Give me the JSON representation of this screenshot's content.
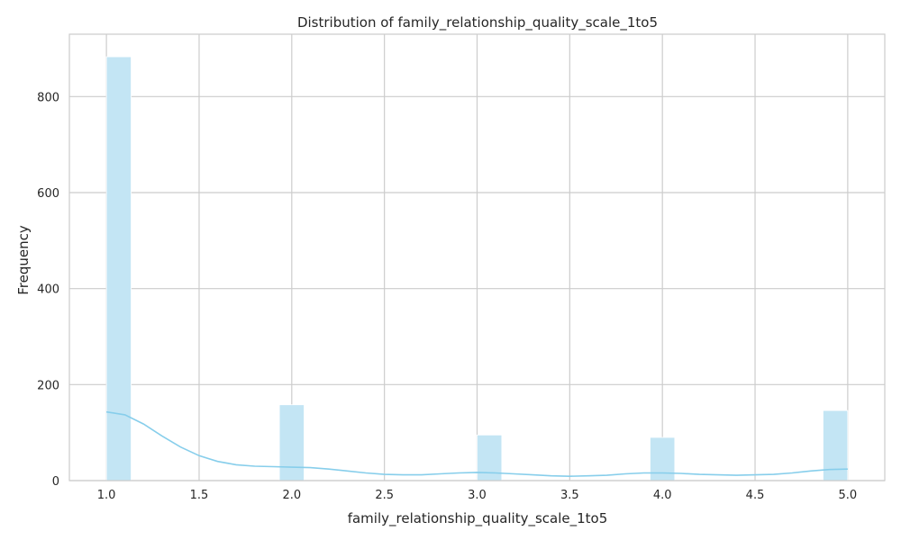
{
  "chart_data": {
    "type": "bar",
    "subtype": "histogram-with-kde",
    "title": "Distribution of family_relationship_quality_scale_1to5",
    "xlabel": "family_relationship_quality_scale_1to5",
    "ylabel": "Frequency",
    "xlim": [
      0.8,
      5.2
    ],
    "ylim": [
      0,
      930
    ],
    "x_ticks": [
      1.0,
      1.5,
      2.0,
      2.5,
      3.0,
      3.5,
      4.0,
      4.5,
      5.0
    ],
    "y_ticks": [
      0,
      200,
      400,
      600,
      800
    ],
    "x_tick_labels": [
      "1.0",
      "1.5",
      "2.0",
      "2.5",
      "3.0",
      "3.5",
      "4.0",
      "4.5",
      "5.0"
    ],
    "y_tick_labels": [
      "0",
      "200",
      "400",
      "600",
      "800"
    ],
    "grid": true,
    "bar_color": "#c3e5f4",
    "kde_color": "#87ceeb",
    "bins": [
      {
        "x0": 1.0,
        "x1": 1.1333,
        "value": 883
      },
      {
        "x0": 1.9333,
        "x1": 2.0667,
        "value": 158
      },
      {
        "x0": 3.0,
        "x1": 3.1333,
        "value": 95
      },
      {
        "x0": 3.9333,
        "x1": 4.0667,
        "value": 90
      },
      {
        "x0": 4.8667,
        "x1": 5.0,
        "value": 146
      }
    ],
    "kde": {
      "x": [
        1.0,
        1.1,
        1.2,
        1.3,
        1.4,
        1.5,
        1.6,
        1.7,
        1.8,
        1.9,
        2.0,
        2.1,
        2.2,
        2.3,
        2.4,
        2.5,
        2.6,
        2.7,
        2.8,
        2.9,
        3.0,
        3.1,
        3.2,
        3.3,
        3.4,
        3.5,
        3.6,
        3.7,
        3.8,
        3.9,
        4.0,
        4.1,
        4.2,
        4.3,
        4.4,
        4.5,
        4.6,
        4.7,
        4.8,
        4.9,
        5.0
      ],
      "y": [
        143,
        137,
        118,
        93,
        70,
        52,
        40,
        33,
        30,
        29,
        28,
        27,
        24,
        20,
        16,
        13,
        12,
        12,
        14,
        16,
        17,
        16,
        14,
        12,
        10,
        9,
        10,
        11,
        14,
        16,
        16,
        15,
        13,
        12,
        11,
        12,
        13,
        16,
        20,
        23,
        24
      ]
    }
  }
}
